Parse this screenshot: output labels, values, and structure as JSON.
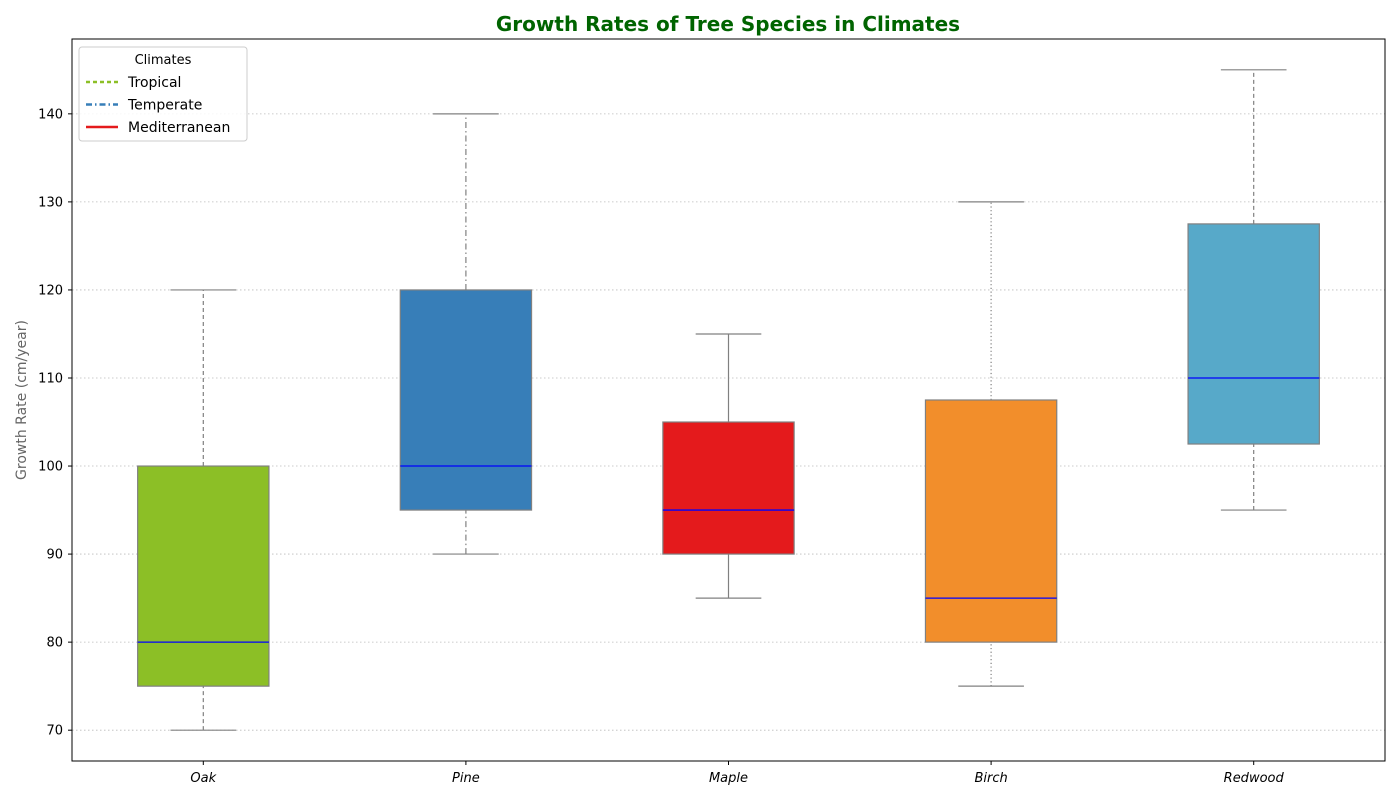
{
  "chart_data": {
    "type": "box",
    "title": "Growth Rates of Tree Species in Climates",
    "title_color": "#006400",
    "xlabel": "",
    "ylabel": "Growth Rate (cm/year)",
    "ylim": [
      66.5,
      148.5
    ],
    "yticks": [
      70,
      80,
      90,
      100,
      110,
      120,
      130,
      140
    ],
    "grid": "horizontal dotted",
    "categories": [
      "Oak",
      "Pine",
      "Maple",
      "Birch",
      "Redwood"
    ],
    "boxes": [
      {
        "name": "Oak",
        "whisker_low": 70,
        "q1": 75,
        "median": 80,
        "q3": 100,
        "whisker_high": 120,
        "color": "#8cbf26",
        "whisker_style": "dashed"
      },
      {
        "name": "Pine",
        "whisker_low": 90,
        "q1": 95,
        "median": 100,
        "q3": 120,
        "whisker_high": 140,
        "color": "#377eb8",
        "whisker_style": "dashdot"
      },
      {
        "name": "Maple",
        "whisker_low": 85,
        "q1": 90,
        "median": 95,
        "q3": 105,
        "whisker_high": 115,
        "color": "#e41a1c",
        "whisker_style": "solid"
      },
      {
        "name": "Birch",
        "whisker_low": 75,
        "q1": 80,
        "median": 85,
        "q3": 107.5,
        "whisker_high": 130,
        "color": "#f28e2b",
        "whisker_style": "dotted"
      },
      {
        "name": "Redwood",
        "whisker_low": 95,
        "q1": 102.5,
        "median": 110,
        "q3": 127.5,
        "whisker_high": 145,
        "color": "#57a9c9",
        "whisker_style": "dashed"
      }
    ],
    "median_color": "#0000ff",
    "legend": {
      "title": "Climates",
      "position": "top-left",
      "entries": [
        {
          "label": "Tropical",
          "color": "#8cbf26",
          "style": "dashed"
        },
        {
          "label": "Temperate",
          "color": "#377eb8",
          "style": "dashdot"
        },
        {
          "label": "Mediterranean",
          "color": "#e41a1c",
          "style": "solid"
        }
      ]
    }
  }
}
